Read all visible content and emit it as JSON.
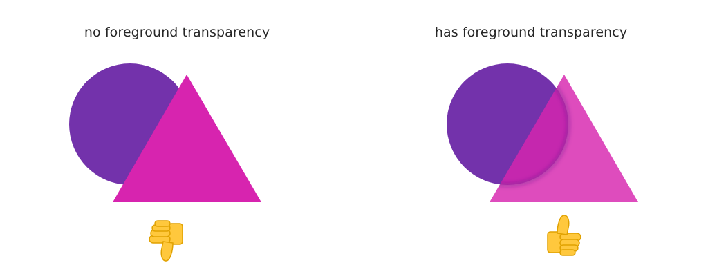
{
  "colors": {
    "background": "#ffffff",
    "circle": "#7332AB",
    "triangle_opaque": "#D724AF",
    "triangle_transparent": "#D724AF",
    "thumb_skin": "#FFC83D",
    "thumb_outline": "#E0A100"
  },
  "panels": [
    {
      "title": "no foreground transparency",
      "triangle_opacity": 1.0,
      "verdict_icon": "thumbs-down-icon"
    },
    {
      "title": "has foreground transparency",
      "triangle_opacity": 0.82,
      "verdict_icon": "thumbs-up-icon"
    }
  ]
}
